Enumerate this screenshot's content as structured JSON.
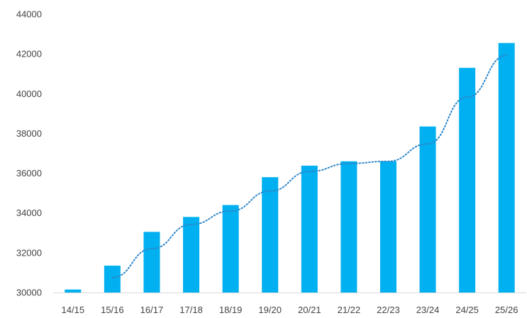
{
  "chart_data": {
    "type": "bar",
    "categories": [
      "14/15",
      "15/16",
      "16/17",
      "17/18",
      "18/19",
      "19/20",
      "20/21",
      "21/22",
      "22/23",
      "23/24",
      "24/25",
      "25/26"
    ],
    "values": [
      30150,
      31350,
      33050,
      33800,
      34400,
      35800,
      36380,
      36600,
      36600,
      38350,
      41300,
      42550
    ],
    "ylim": [
      30000,
      44000
    ],
    "yticks": [
      30000,
      32000,
      34000,
      36000,
      38000,
      40000,
      42000,
      44000
    ],
    "grid": false,
    "legend": "none",
    "trendline": {
      "style": "dotted",
      "type": "two-period moving average"
    },
    "colors": {
      "bar": "#00b0f0",
      "trendline": "#2e86c9",
      "axis": "#d9d9d9",
      "text": "#444444"
    }
  }
}
